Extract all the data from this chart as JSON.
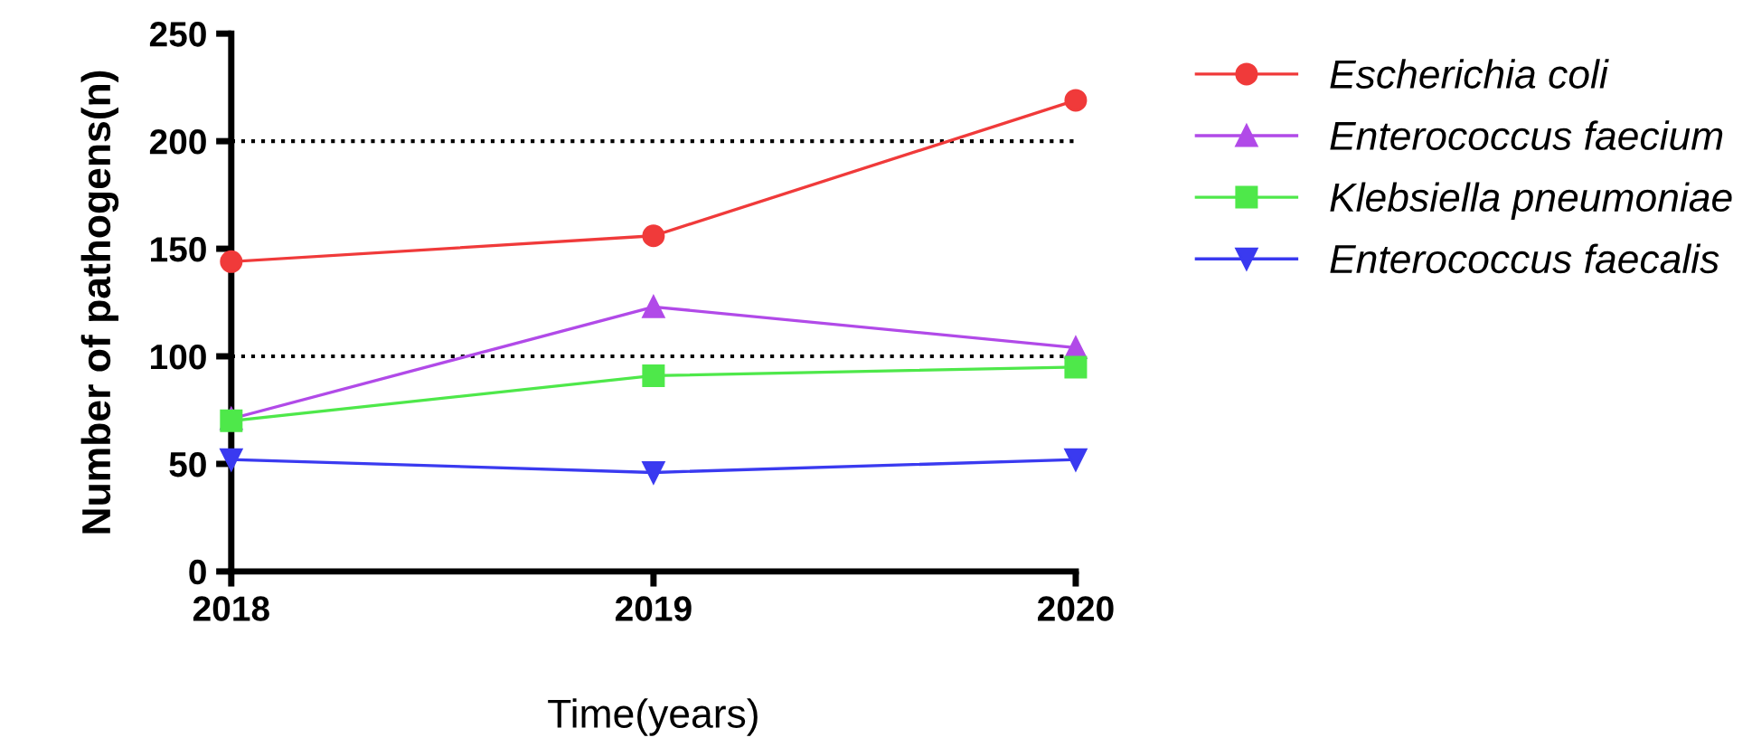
{
  "chart_data": {
    "type": "line",
    "xlabel": "Time(years)",
    "ylabel": "Number of pathogens(n)",
    "x": [
      2018,
      2019,
      2020
    ],
    "xlim": [
      2018,
      2020
    ],
    "xticks": [
      2018,
      2019,
      2020
    ],
    "ylim": [
      0,
      250
    ],
    "yticks": [
      0,
      50,
      100,
      150,
      200,
      250
    ],
    "series": [
      {
        "name": "Escherichia coli",
        "color": "#f03a3a",
        "marker": "circle",
        "values": [
          144,
          156,
          219
        ]
      },
      {
        "name": "Enterococcus faecium",
        "color": "#b14ae8",
        "marker": "triangle",
        "values": [
          71,
          123,
          104
        ]
      },
      {
        "name": "Klebsiella pneumoniae",
        "color": "#4ee84a",
        "marker": "square",
        "values": [
          70,
          91,
          95
        ]
      },
      {
        "name": "Enterococcus faecalis",
        "color": "#3a3af0",
        "marker": "triangle_down",
        "values": [
          52,
          46,
          52
        ]
      }
    ],
    "ref_lines": [
      {
        "axis": "y",
        "value": 100,
        "line_style": "dotted",
        "color": "#000000"
      },
      {
        "axis": "y",
        "value": 200,
        "line_style": "dotted",
        "color": "#000000"
      }
    ],
    "legend": "right",
    "grid": false
  }
}
